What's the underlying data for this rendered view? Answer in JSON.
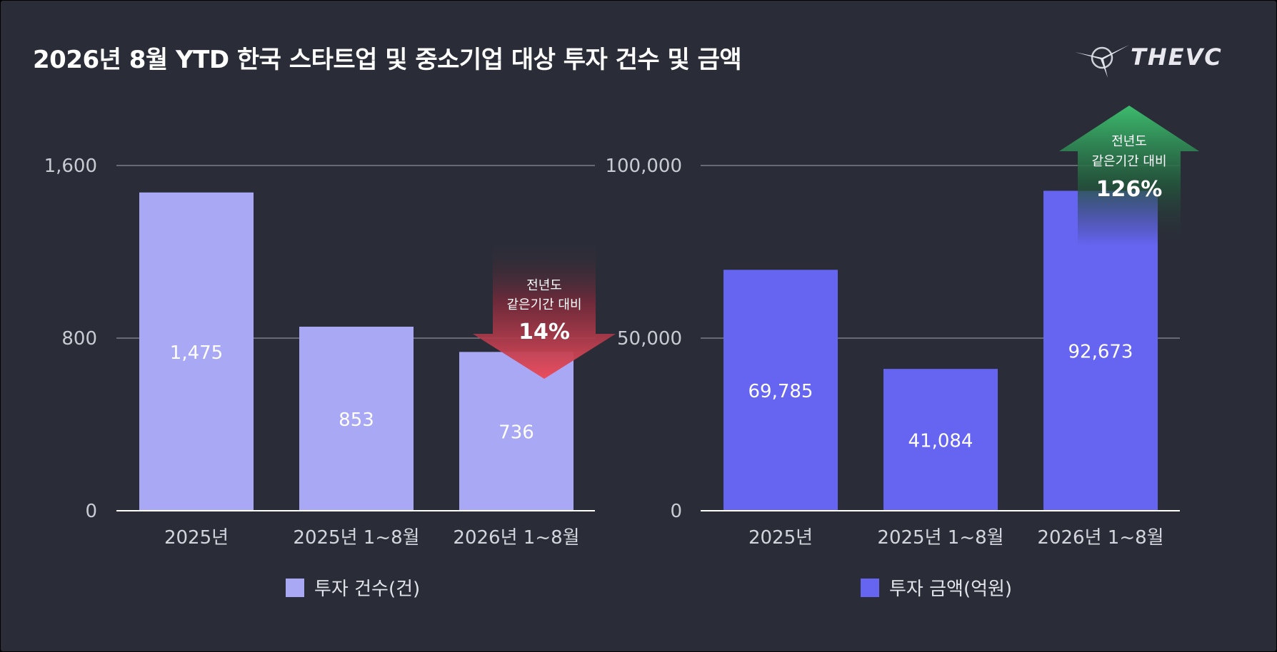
{
  "title": "2026년 8월 YTD 한국 스타트업 및 중소기업 대상 투자 건수 및 금액",
  "logo": {
    "text": "THEVC",
    "icon": "compass-star-logo-icon"
  },
  "colors": {
    "background": "#2a2d38",
    "count_bar": "#a9a8f5",
    "amount_bar": "#6565f2",
    "down_arrow": "#e84a5a",
    "up_arrow": "#3cb56b"
  },
  "chart_data": [
    {
      "type": "bar",
      "categories": [
        "2025년",
        "2025년 1~8월",
        "2026년 1~8월"
      ],
      "series": [
        {
          "name": "투자 건수(건)",
          "values": [
            1475,
            853,
            736
          ]
        }
      ],
      "data_labels": [
        "1,475",
        "853",
        "736"
      ],
      "yticks": [
        "0",
        "800",
        "1,600"
      ],
      "ylim": [
        0,
        1600
      ],
      "grid": true,
      "legend": "bottom",
      "annotation": {
        "direction": "down",
        "line1": "전년도",
        "line2": "같은기간 대비",
        "value": "14%"
      }
    },
    {
      "type": "bar",
      "categories": [
        "2025년",
        "2025년 1~8월",
        "2026년 1~8월"
      ],
      "series": [
        {
          "name": "투자 금액(억원)",
          "values": [
            69785,
            41084,
            92673
          ]
        }
      ],
      "data_labels": [
        "69,785",
        "41,084",
        "92,673"
      ],
      "yticks": [
        "0",
        "50,000",
        "100,000"
      ],
      "ylim": [
        0,
        100000
      ],
      "grid": true,
      "legend": "bottom",
      "annotation": {
        "direction": "up",
        "line1": "전년도",
        "line2": "같은기간 대비",
        "value": "126%"
      }
    }
  ]
}
